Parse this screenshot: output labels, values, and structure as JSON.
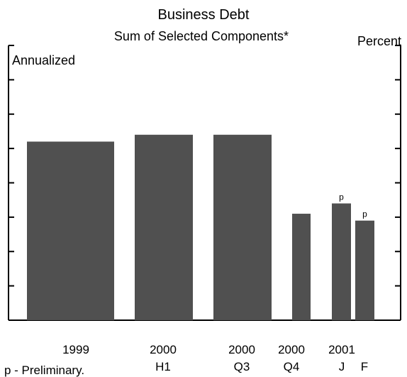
{
  "chart_data": {
    "type": "bar",
    "title": "Business Debt",
    "subtitle": "Sum of Selected Components*",
    "ylabel": "Percent",
    "annotation": "Annualized",
    "footnote": "p - Preliminary.",
    "grid": false,
    "ylim": [
      0,
      8
    ],
    "categories": [
      {
        "line1": "1999",
        "line2": "",
        "value": 5.2,
        "preliminary": "",
        "group": "single"
      },
      {
        "line1": "2000",
        "line2": "H1",
        "value": 5.4,
        "preliminary": "",
        "group": "single"
      },
      {
        "line1": "2000",
        "line2": "Q3",
        "value": 5.4,
        "preliminary": "",
        "group": "single"
      },
      {
        "line1": "2000",
        "line2": "Q4",
        "value": 3.1,
        "preliminary": "",
        "group": "single"
      },
      {
        "line1": "2001",
        "line2": "J",
        "value": 3.4,
        "preliminary": "p",
        "group": "pair-left"
      },
      {
        "line1": "",
        "line2": "F",
        "value": 2.9,
        "preliminary": "p",
        "group": "pair-right"
      }
    ],
    "colors": {
      "bar": "#505050",
      "axis": "#000000"
    }
  }
}
